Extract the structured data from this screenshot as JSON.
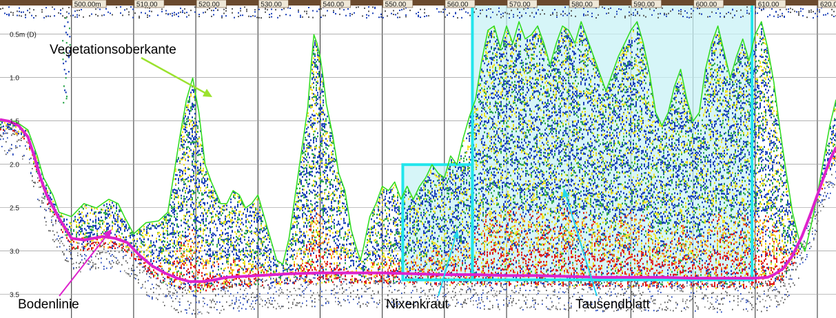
{
  "chart_data": {
    "type": "area",
    "title": "",
    "xlabel": "",
    "ylabel": "",
    "xlim": [
      488.5,
      623
    ],
    "ylim": [
      3.72,
      0.05
    ],
    "x_ticks": [
      "500.00m",
      "510.00",
      "520.00",
      "530.00",
      "540.00",
      "550.00",
      "560.00",
      "570.00",
      "580.00",
      "590.00",
      "600.00",
      "610.00",
      "620.00"
    ],
    "x_tick_values": [
      500,
      510,
      520,
      530,
      540,
      550,
      560,
      570,
      580,
      590,
      600,
      610,
      620
    ],
    "y_ticks": [
      "0.5m (D)",
      "1.0",
      "1.5",
      "2.0",
      "2.5",
      "3.0",
      "3.5"
    ],
    "y_tick_values": [
      0.5,
      1.0,
      1.5,
      2.0,
      2.5,
      3.0,
      3.5
    ],
    "grid": true,
    "series": [
      {
        "name": "Vegetationsoberkante",
        "color": "#33dd22",
        "x": [
          488.5,
          491,
          493,
          494.5,
          495.5,
          497,
          498,
          500,
          502,
          504,
          506,
          507.5,
          508.5,
          510,
          512,
          514,
          515.5,
          516.5,
          517.5,
          518.5,
          519.5,
          520.5,
          521.5,
          522.5,
          524,
          525,
          526,
          527,
          528,
          529,
          530,
          531,
          532,
          533,
          534,
          535,
          536,
          537,
          538,
          538.5,
          539,
          539.5,
          540,
          540.5,
          541,
          542,
          543,
          544,
          545,
          546,
          546.5,
          547,
          548,
          549,
          550,
          551,
          552,
          553,
          554,
          555,
          556,
          557,
          558,
          559,
          560,
          561,
          562,
          563,
          564,
          565,
          566,
          567,
          568,
          569,
          570,
          571,
          572,
          573,
          574,
          575,
          576,
          577,
          578,
          579,
          580,
          581,
          582,
          583,
          584,
          585,
          586,
          587,
          588,
          589,
          590,
          591,
          592,
          593,
          594,
          595,
          596,
          597,
          598,
          599,
          600,
          601,
          602,
          603,
          604,
          605,
          606,
          607,
          608,
          609,
          610,
          611,
          612,
          613,
          614,
          615,
          616,
          617,
          618,
          619,
          620,
          621,
          622,
          623
        ],
        "y": [
          1.45,
          1.45,
          1.55,
          1.85,
          2.1,
          2.3,
          2.5,
          2.55,
          2.4,
          2.45,
          2.35,
          2.4,
          2.55,
          2.75,
          2.62,
          2.6,
          2.5,
          2.05,
          1.6,
          1.2,
          0.95,
          1.35,
          1.95,
          2.15,
          2.4,
          2.4,
          2.25,
          2.3,
          2.45,
          2.4,
          2.3,
          2.55,
          2.8,
          3.05,
          3.1,
          2.8,
          2.3,
          1.8,
          1.3,
          0.85,
          0.45,
          0.55,
          0.7,
          0.95,
          1.25,
          1.6,
          2.05,
          2.25,
          2.7,
          2.95,
          3.05,
          2.9,
          2.55,
          2.4,
          2.2,
          2.25,
          2.15,
          2.35,
          2.2,
          2.35,
          2.2,
          2.1,
          1.95,
          2.05,
          2.1,
          1.85,
          1.95,
          1.65,
          1.4,
          1.2,
          0.75,
          0.4,
          0.35,
          0.6,
          0.35,
          0.55,
          0.3,
          0.5,
          0.45,
          0.35,
          0.55,
          0.8,
          0.55,
          0.35,
          0.4,
          0.55,
          0.3,
          0.5,
          0.7,
          0.9,
          1.1,
          0.9,
          0.7,
          0.55,
          0.4,
          0.3,
          0.55,
          0.9,
          1.35,
          1.5,
          1.35,
          1.05,
          0.85,
          1.2,
          1.45,
          1.35,
          0.85,
          0.55,
          0.35,
          0.65,
          0.95,
          0.7,
          0.5,
          0.75,
          0.45,
          0.3,
          0.6,
          1.0,
          1.55,
          2.05,
          2.5,
          2.8,
          2.95,
          2.65,
          2.3,
          1.9,
          1.5,
          1.2
        ]
      },
      {
        "name": "Bodenlinie",
        "color": "#dd22cc",
        "x": [
          488.5,
          490,
          491.5,
          493,
          494,
          495,
          496,
          498,
          500,
          502,
          503.5,
          505,
          507,
          509,
          511,
          513,
          515,
          517,
          519,
          521,
          523,
          525,
          530,
          535,
          540,
          545,
          550,
          555,
          560,
          565,
          570,
          575,
          580,
          585,
          590,
          595,
          600,
          605,
          610,
          612,
          613,
          614.5,
          616,
          617.5,
          619,
          620.5,
          622,
          623
        ],
        "y": [
          1.43,
          1.45,
          1.5,
          1.63,
          1.85,
          2.1,
          2.3,
          2.57,
          2.8,
          2.82,
          2.8,
          2.78,
          2.8,
          2.85,
          3.0,
          3.12,
          3.2,
          3.26,
          3.3,
          3.3,
          3.28,
          3.25,
          3.23,
          3.21,
          3.2,
          3.2,
          3.2,
          3.21,
          3.22,
          3.22,
          3.23,
          3.23,
          3.24,
          3.25,
          3.25,
          3.25,
          3.26,
          3.26,
          3.26,
          3.25,
          3.22,
          3.15,
          3.0,
          2.78,
          2.5,
          2.2,
          1.9,
          1.75
        ]
      }
    ],
    "regions": [
      {
        "label": "Nixenkraut",
        "x_range": [
          553.3,
          564.5
        ],
        "y_range": [
          1.95,
          3.28
        ],
        "color": "#22e5ec"
      },
      {
        "label": "Tausendblatt",
        "x_range": [
          564.5,
          609.5
        ],
        "y_range": [
          0.08,
          3.28
        ],
        "color": "#22e5ec"
      }
    ],
    "annotations": [
      "Vegetationsoberkante",
      "Bodenlinie",
      "Nixenkraut",
      "Tausendblatt"
    ],
    "colors": {
      "ruler_bar": "#6b4a2e",
      "tick_label_box": "#efe8d8",
      "bottom_line": "#dd22cc",
      "vegetation_line": "#33dd22",
      "region_outline": "#22e5ec",
      "region_fill": "#c8f2f6",
      "echo_strong": "#e01818",
      "echo_mid": "#f0e020",
      "echo_weak": "#1a3fb8",
      "echo_faint": "#2ba64a"
    }
  }
}
